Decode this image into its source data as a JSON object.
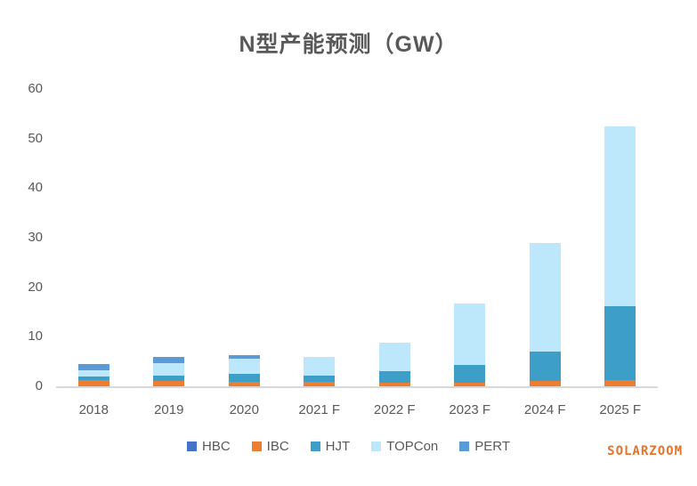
{
  "title": "N型产能预测（GW）",
  "branding": {
    "logo_text": "SOLARZOOM",
    "logo_color": "#e8732a"
  },
  "axis_color": "#595959",
  "baseline_color": "#d9d9d9",
  "chart_data": {
    "type": "bar",
    "stacked": true,
    "title": "N型产能预测（GW）",
    "xlabel": "",
    "ylabel": "",
    "ylim": [
      0,
      60
    ],
    "yticks": [
      0,
      10,
      20,
      30,
      40,
      50,
      60
    ],
    "grid": false,
    "legend_position": "bottom",
    "categories": [
      "2018",
      "2019",
      "2020",
      "2021 F",
      "2022 F",
      "2023 F",
      "2024 F",
      "2025 F"
    ],
    "series": [
      {
        "name": "HBC",
        "color": "#4472c4",
        "values": [
          0,
          0,
          0,
          0,
          0,
          0,
          0,
          0
        ]
      },
      {
        "name": "IBC",
        "color": "#ed7d31",
        "values": [
          1.2,
          1.0,
          0.9,
          0.9,
          0.8,
          0.8,
          1.0,
          1.2
        ]
      },
      {
        "name": "HJT",
        "color": "#3d9fc8",
        "values": [
          0.8,
          1.2,
          1.7,
          1.3,
          2.2,
          3.6,
          6.0,
          15.0
        ]
      },
      {
        "name": "TOPCon",
        "color": "#bde7fa",
        "values": [
          1.3,
          2.5,
          3.0,
          3.7,
          5.8,
          12.3,
          22.0,
          36.3
        ]
      },
      {
        "name": "PERT",
        "color": "#5b9bd5",
        "values": [
          1.2,
          1.2,
          0.7,
          0,
          0,
          0,
          0,
          0
        ]
      }
    ],
    "totals": [
      4.5,
      5.9,
      6.3,
      5.9,
      8.8,
      16.7,
      29.0,
      52.5
    ]
  }
}
